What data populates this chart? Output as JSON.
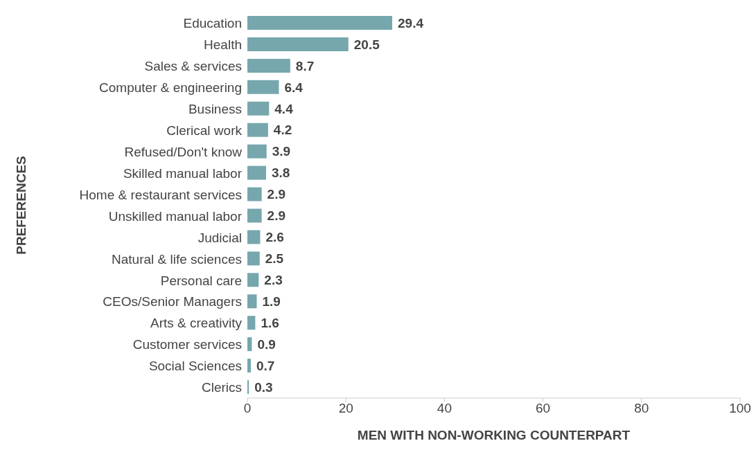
{
  "chart_data": {
    "type": "bar",
    "orientation": "horizontal",
    "xlabel": "MEN WITH NON-WORKING COUNTERPART",
    "ylabel": "PREFERENCES",
    "categories": [
      "Education",
      "Health",
      "Sales & services",
      "Computer & engineering",
      "Business",
      "Clerical work",
      "Refused/Don't know",
      "Skilled manual labor",
      "Home & restaurant services",
      "Unskilled manual labor",
      "Judicial",
      "Natural & life sciences",
      "Personal care",
      "CEOs/Senior Managers",
      "Arts & creativity",
      "Customer services",
      "Social Sciences",
      "Clerics"
    ],
    "values": [
      29.4,
      20.5,
      8.7,
      6.4,
      4.4,
      4.2,
      3.9,
      3.8,
      2.9,
      2.9,
      2.6,
      2.5,
      2.3,
      1.9,
      1.6,
      0.9,
      0.7,
      0.3
    ],
    "color": "#76a7ad",
    "xlim": [
      0,
      100
    ],
    "xticks": [
      0,
      20,
      40,
      60,
      80,
      100
    ],
    "data_labels": true,
    "grid": false,
    "legend": false
  }
}
